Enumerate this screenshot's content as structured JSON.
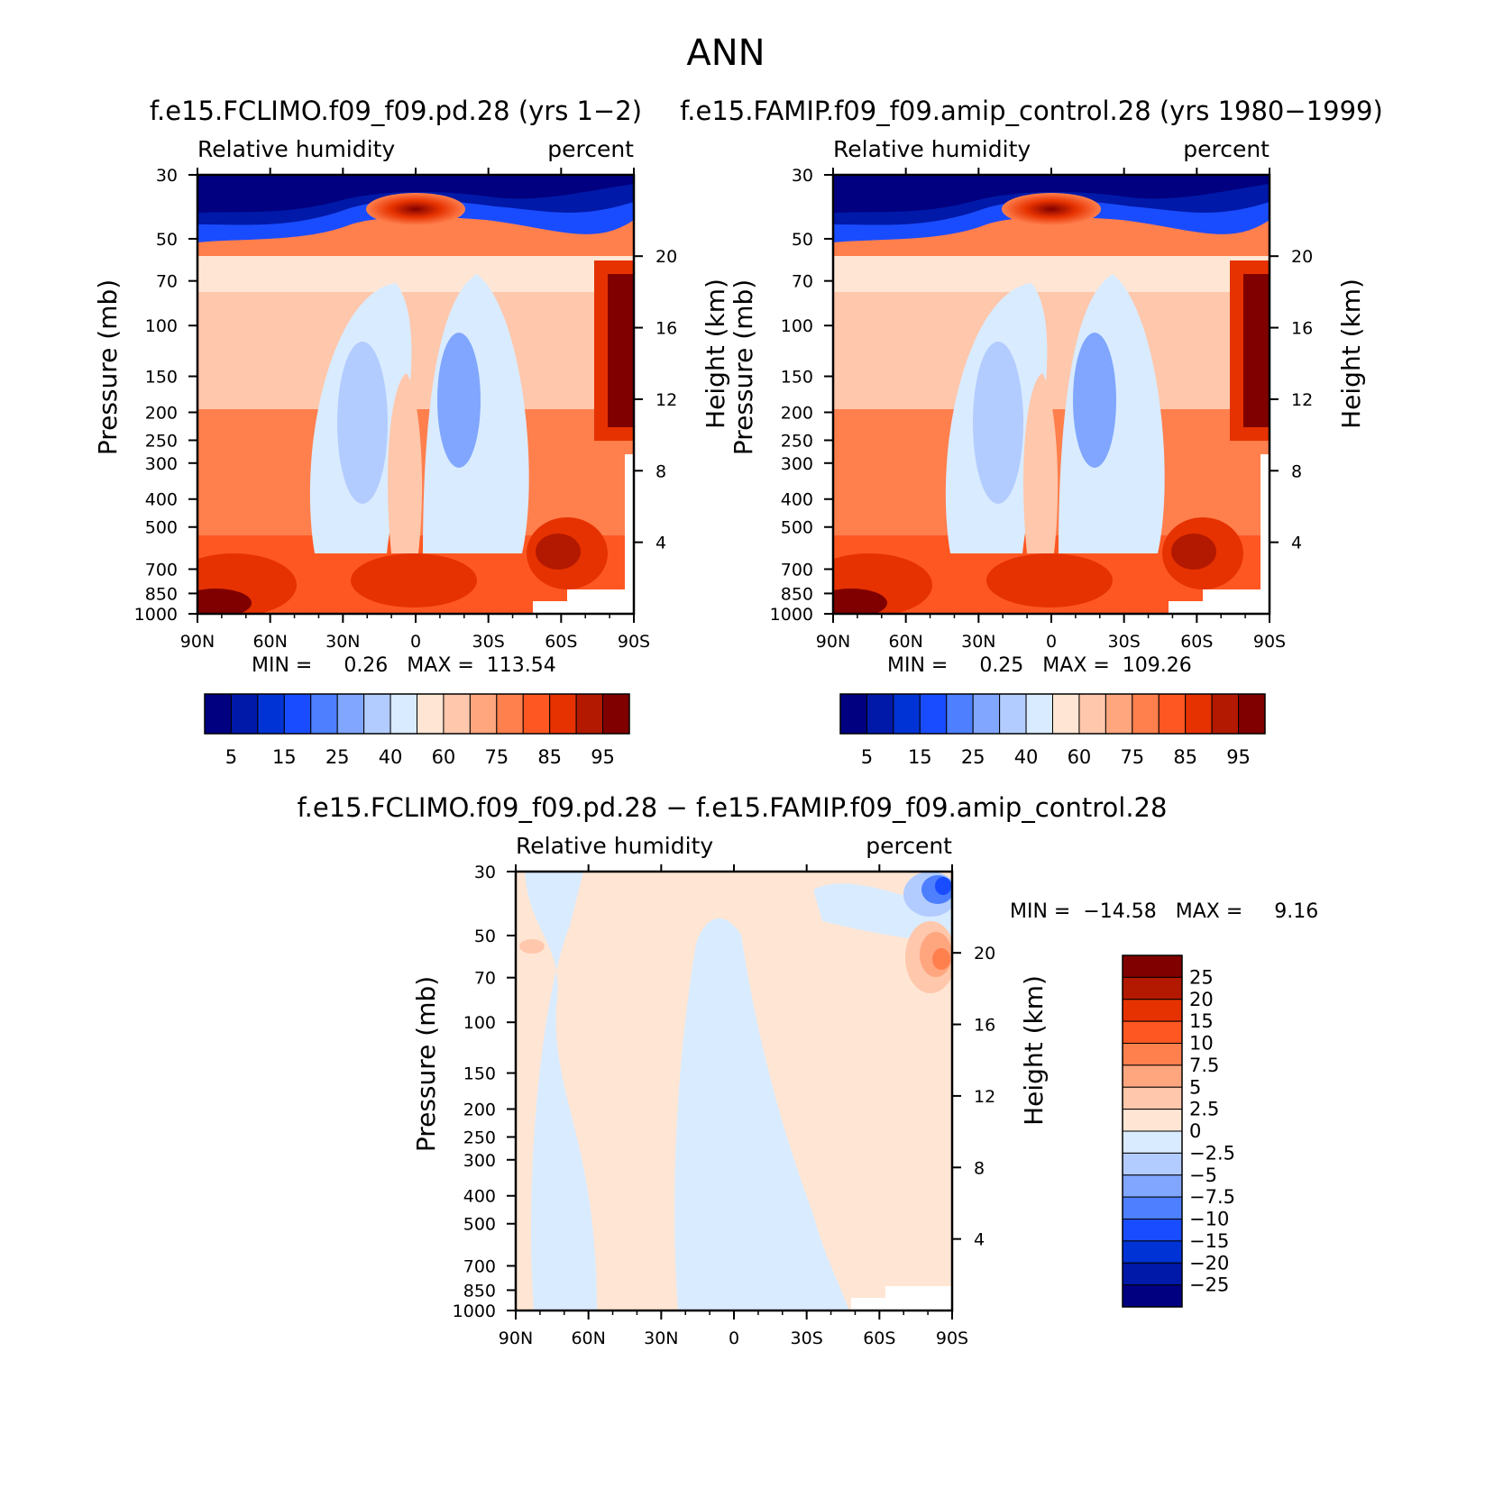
{
  "figure_title": "ANN",
  "colors": {
    "rh_scale": [
      "#000080",
      "#0019a8",
      "#0033d6",
      "#1a4cff",
      "#4d7fff",
      "#80a6ff",
      "#b3ccff",
      "#d9ebff",
      "#ffe6d4",
      "#ffc7ab",
      "#ffa67f",
      "#ff7f4d",
      "#ff5722",
      "#e63200",
      "#b31900",
      "#800000"
    ],
    "diff_scale": [
      "#000080",
      "#0019a8",
      "#0033d6",
      "#1a4cff",
      "#4d7fff",
      "#80a6ff",
      "#b3ccff",
      "#d9ebff",
      "#ffe6d4",
      "#ffc7ab",
      "#ffa67f",
      "#ff7f4d",
      "#ff5722",
      "#e63200",
      "#b31900",
      "#800000"
    ]
  },
  "chart_data": [
    {
      "type": "heatmap",
      "id": "panel1",
      "title": "f.e15.FCLIMO.f09_f09.pd.28 (yrs 1−2)",
      "left_subtitle": "Relative humidity",
      "right_subtitle": "percent",
      "ylabel": "Pressure (mb)",
      "ylabel_right": "Height (km)",
      "x_ticks": [
        "90N",
        "60N",
        "30N",
        "0",
        "30S",
        "60S",
        "90S"
      ],
      "y_ticks": [
        "30",
        "50",
        "70",
        "100",
        "150",
        "200",
        "250",
        "300",
        "400",
        "500",
        "700",
        "850",
        "1000"
      ],
      "y_ticks_right": [
        "20",
        "16",
        "12",
        "8",
        "4"
      ],
      "min_max_text": "MIN =     0.26   MAX =  113.54",
      "colorbar_labels": [
        "5",
        "15",
        "25",
        "40",
        "60",
        "75",
        "85",
        "95"
      ]
    },
    {
      "type": "heatmap",
      "id": "panel2",
      "title": "f.e15.FAMIP.f09_f09.amip_control.28 (yrs 1980−1999)",
      "left_subtitle": "Relative humidity",
      "right_subtitle": "percent",
      "ylabel": "Pressure (mb)",
      "ylabel_right": "Height (km)",
      "x_ticks": [
        "90N",
        "60N",
        "30N",
        "0",
        "30S",
        "60S",
        "90S"
      ],
      "y_ticks": [
        "30",
        "50",
        "70",
        "100",
        "150",
        "200",
        "250",
        "300",
        "400",
        "500",
        "700",
        "850",
        "1000"
      ],
      "y_ticks_right": [
        "20",
        "16",
        "12",
        "8",
        "4"
      ],
      "min_max_text": "MIN =     0.25   MAX =  109.26",
      "colorbar_labels": [
        "5",
        "15",
        "25",
        "40",
        "60",
        "75",
        "85",
        "95"
      ]
    },
    {
      "type": "heatmap",
      "id": "panel3",
      "title": "f.e15.FCLIMO.f09_f09.pd.28 − f.e15.FAMIP.f09_f09.amip_control.28",
      "left_subtitle": "Relative humidity",
      "right_subtitle": "percent",
      "ylabel": "Pressure (mb)",
      "ylabel_right": "Height (km)",
      "x_ticks": [
        "90N",
        "60N",
        "30N",
        "0",
        "30S",
        "60S",
        "90S"
      ],
      "y_ticks": [
        "30",
        "50",
        "70",
        "100",
        "150",
        "200",
        "250",
        "300",
        "400",
        "500",
        "700",
        "850",
        "1000"
      ],
      "y_ticks_right": [
        "20",
        "16",
        "12",
        "8",
        "4"
      ],
      "min_max_text": "MIN =  −14.58   MAX =     9.16",
      "colorbar_labels": [
        "25",
        "20",
        "15",
        "10",
        "7.5",
        "5",
        "2.5",
        "0",
        "−2.5",
        "−5",
        "−7.5",
        "−10",
        "−15",
        "−20",
        "−25"
      ]
    }
  ]
}
